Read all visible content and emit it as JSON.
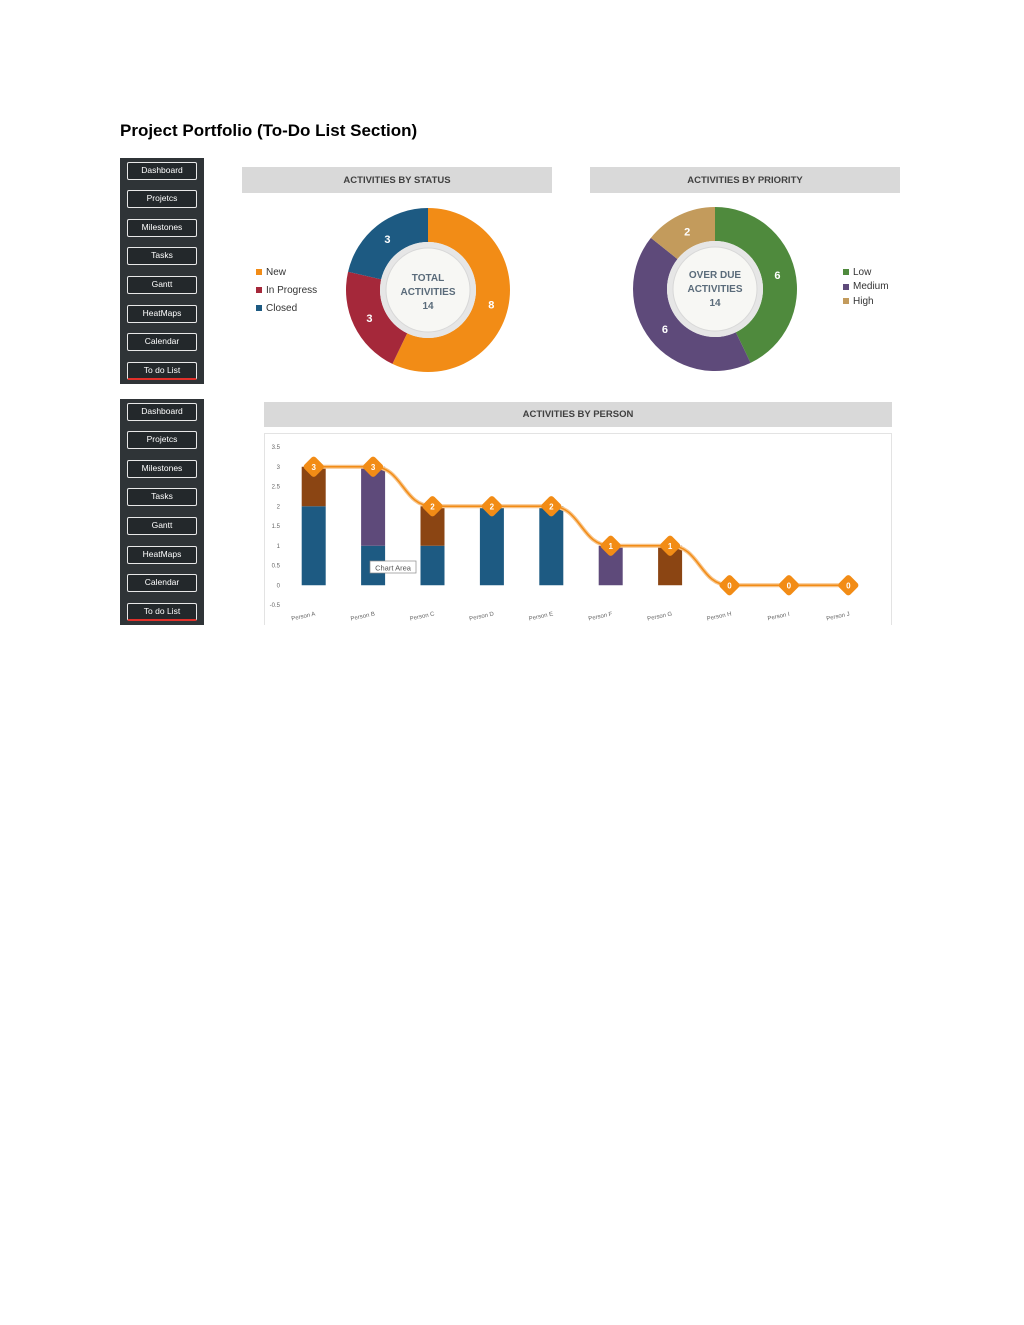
{
  "page_title": "Project Portfolio (To-Do List Section)",
  "nav": {
    "items": [
      {
        "label": "Dashboard"
      },
      {
        "label": "Projetcs"
      },
      {
        "label": "Milestones"
      },
      {
        "label": "Tasks"
      },
      {
        "label": "Gantt"
      },
      {
        "label": "HeatMaps"
      },
      {
        "label": "Calendar"
      },
      {
        "label": "To do List"
      }
    ]
  },
  "status_panel": {
    "header": "ACTIVITIES BY STATUS",
    "center_line1": "TOTAL",
    "center_line2": "ACTIVITIES",
    "center_value": "14"
  },
  "priority_panel": {
    "header": "ACTIVITIES BY PRIORITY",
    "center_line1": "OVER DUE",
    "center_line2": "ACTIVITIES",
    "center_value": "14"
  },
  "person_panel": {
    "header": "ACTIVITIES BY PERSON",
    "tooltip": "Chart Area"
  },
  "chart_data": [
    {
      "type": "pie",
      "title": "ACTIVITIES BY STATUS",
      "categories": [
        "New",
        "In Progress",
        "Closed"
      ],
      "values": [
        8,
        3,
        3
      ],
      "colors": [
        "#f28c16",
        "#a5283a",
        "#1d5a82"
      ]
    },
    {
      "type": "pie",
      "title": "ACTIVITIES BY PRIORITY",
      "categories": [
        "Low",
        "Medium",
        "High"
      ],
      "values": [
        6,
        6,
        2
      ],
      "colors": [
        "#4f8a3d",
        "#5e4a7a",
        "#c39b5c"
      ]
    },
    {
      "type": "bar",
      "title": "ACTIVITIES BY PERSON",
      "categories": [
        "Person A",
        "Person B",
        "Person C",
        "Person D",
        "Person E",
        "Person F",
        "Person G",
        "Person H",
        "Person I",
        "Person J"
      ],
      "series": [
        {
          "values": [
            2,
            1,
            1,
            2,
            2,
            0,
            0,
            0,
            0,
            0
          ],
          "color": "#1d5a82"
        },
        {
          "values": [
            0,
            2,
            0,
            0,
            0,
            1,
            0,
            0,
            0,
            0
          ],
          "color": "#5e4a7a"
        },
        {
          "values": [
            1,
            0,
            1,
            0,
            0,
            0,
            1,
            0,
            0,
            0
          ],
          "color": "#8b4513"
        }
      ],
      "line": {
        "values": [
          3,
          3,
          2,
          2,
          2,
          1,
          1,
          0,
          0,
          0
        ],
        "color": "#f28c16"
      },
      "ylim": [
        -0.5,
        3.5
      ],
      "yticks": [
        "-0.5",
        "0",
        "0.5",
        "1",
        "1.5",
        "2",
        "2.5",
        "3",
        "3.5"
      ]
    }
  ]
}
